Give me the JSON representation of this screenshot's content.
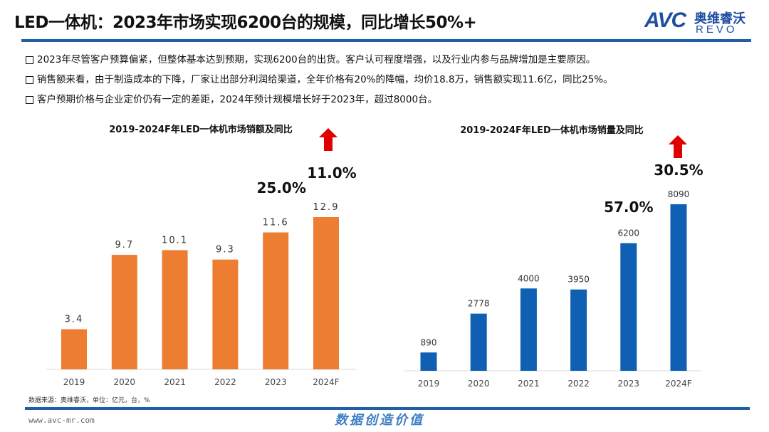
{
  "header": {
    "title": "LED一体机：2023年市场实现6200台的规模，同比增长50%+",
    "logo": {
      "mark": "AVC",
      "cn": "奥维睿沃",
      "en": "REVO"
    }
  },
  "bullets": [
    "2023年尽管客户预算偏紧，但整体基本达到预期，实现6200台的出货。客户认可程度增强，以及行业内参与品牌增加是主要原因。",
    "销售额来看，由于制造成本的下降，厂家让出部分利润给渠道，全年价格有20%的降幅，均价18.8万，销售额实现11.6亿，同比25%。",
    "客户预期价格与企业定价仍有一定的差距，2024年预计规模增长好于2023年，超过8000台。"
  ],
  "footer": {
    "source": "数据来源：奥维睿沃，单位：亿元，台，%",
    "url": "www.avc-mr.com",
    "slogan": "数据创造价值"
  },
  "colors": {
    "accent": "#1f5fa6",
    "sales_bar": "#ed7d31",
    "volume_bar": "#0f5fb2",
    "arrow": "#e00000"
  },
  "chart_data": [
    {
      "type": "bar",
      "title": "2019-2024F年LED一体机市场销额及同比",
      "categories": [
        "2019",
        "2020",
        "2021",
        "2022",
        "2023",
        "2024F"
      ],
      "values": [
        3.4,
        9.7,
        10.1,
        9.3,
        11.6,
        12.9
      ],
      "value_labels": [
        "3.4",
        "9.7",
        "10.1",
        "9.3",
        "11.6",
        "12.9"
      ],
      "ylim": [
        0,
        12.9
      ],
      "grid": false,
      "annotations": [
        {
          "category": "2023",
          "text": "25.0%"
        },
        {
          "category": "2024F",
          "text": "11.0%"
        }
      ],
      "arrow": "up-arrow-icon"
    },
    {
      "type": "bar",
      "title": "2019-2024F年LED一体机市场销量及同比",
      "categories": [
        "2019",
        "2020",
        "2021",
        "2022",
        "2023",
        "2024F"
      ],
      "values": [
        890,
        2778,
        4000,
        3950,
        6200,
        8090
      ],
      "value_labels": [
        "890",
        "2778",
        "4000",
        "3950",
        "6200",
        "8090"
      ],
      "ylim": [
        0,
        8090
      ],
      "grid": false,
      "annotations": [
        {
          "category": "2023",
          "text": "57.0%"
        },
        {
          "category": "2024F",
          "text": "30.5%"
        }
      ],
      "arrow": "up-arrow-icon"
    }
  ]
}
